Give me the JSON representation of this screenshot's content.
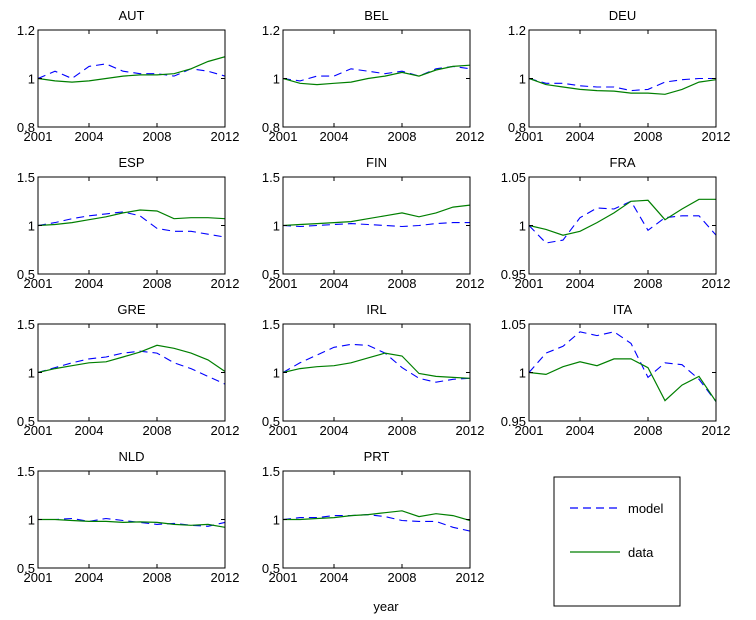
{
  "xlabel": "year",
  "legend": {
    "entries": [
      {
        "label": "model",
        "color": "#0000ff",
        "style": "dashed"
      },
      {
        "label": "data",
        "color": "#007f00",
        "style": "solid"
      }
    ]
  },
  "chart_data": [
    {
      "type": "line",
      "title": "AUT",
      "xlim": [
        2001,
        2012
      ],
      "ylim": [
        0.8,
        1.2
      ],
      "xticks": [
        {
          "v": 2001,
          "t": "2001"
        },
        {
          "v": 2004,
          "t": "2004"
        },
        {
          "v": 2008,
          "t": "2008"
        },
        {
          "v": 2012,
          "t": "2012"
        }
      ],
      "yticks": [
        {
          "v": 0.8,
          "t": "0.8"
        },
        {
          "v": 1,
          "t": "1"
        },
        {
          "v": 1.2,
          "t": "1.2"
        }
      ],
      "x": [
        2001,
        2002,
        2003,
        2004,
        2005,
        2006,
        2007,
        2008,
        2009,
        2010,
        2011,
        2012
      ],
      "series": [
        {
          "name": "model",
          "values": [
            1.0,
            1.03,
            1.0,
            1.05,
            1.06,
            1.03,
            1.02,
            1.02,
            1.01,
            1.04,
            1.03,
            1.01
          ]
        },
        {
          "name": "data",
          "values": [
            1.0,
            0.99,
            0.985,
            0.99,
            1.0,
            1.01,
            1.015,
            1.015,
            1.02,
            1.04,
            1.07,
            1.09
          ]
        }
      ]
    },
    {
      "type": "line",
      "title": "BEL",
      "xlim": [
        2001,
        2012
      ],
      "ylim": [
        0.8,
        1.2
      ],
      "xticks": [
        {
          "v": 2001,
          "t": "2001"
        },
        {
          "v": 2004,
          "t": "2004"
        },
        {
          "v": 2008,
          "t": "2008"
        },
        {
          "v": 2012,
          "t": "2012"
        }
      ],
      "yticks": [
        {
          "v": 0.8,
          "t": "0.8"
        },
        {
          "v": 1,
          "t": "1"
        },
        {
          "v": 1.2,
          "t": "1.2"
        }
      ],
      "x": [
        2001,
        2002,
        2003,
        2004,
        2005,
        2006,
        2007,
        2008,
        2009,
        2010,
        2011,
        2012
      ],
      "series": [
        {
          "name": "model",
          "values": [
            1.0,
            0.99,
            1.01,
            1.01,
            1.04,
            1.03,
            1.02,
            1.03,
            1.01,
            1.04,
            1.05,
            1.04
          ]
        },
        {
          "name": "data",
          "values": [
            1.0,
            0.98,
            0.975,
            0.98,
            0.985,
            1.0,
            1.01,
            1.025,
            1.01,
            1.035,
            1.05,
            1.055
          ]
        }
      ]
    },
    {
      "type": "line",
      "title": "DEU",
      "xlim": [
        2001,
        2012
      ],
      "ylim": [
        0.8,
        1.2
      ],
      "xticks": [
        {
          "v": 2001,
          "t": "2001"
        },
        {
          "v": 2004,
          "t": "2004"
        },
        {
          "v": 2008,
          "t": "2008"
        },
        {
          "v": 2012,
          "t": "2012"
        }
      ],
      "yticks": [
        {
          "v": 0.8,
          "t": "0.8"
        },
        {
          "v": 1,
          "t": "1"
        },
        {
          "v": 1.2,
          "t": "1.2"
        }
      ],
      "x": [
        2001,
        2002,
        2003,
        2004,
        2005,
        2006,
        2007,
        2008,
        2009,
        2010,
        2011,
        2012
      ],
      "series": [
        {
          "name": "model",
          "values": [
            1.0,
            0.98,
            0.98,
            0.97,
            0.965,
            0.965,
            0.95,
            0.955,
            0.985,
            0.995,
            1.0,
            1.0
          ]
        },
        {
          "name": "data",
          "values": [
            1.0,
            0.975,
            0.965,
            0.955,
            0.95,
            0.948,
            0.94,
            0.94,
            0.935,
            0.955,
            0.985,
            0.995
          ]
        }
      ]
    },
    {
      "type": "line",
      "title": "ESP",
      "xlim": [
        2001,
        2012
      ],
      "ylim": [
        0.5,
        1.5
      ],
      "xticks": [
        {
          "v": 2001,
          "t": "2001"
        },
        {
          "v": 2004,
          "t": "2004"
        },
        {
          "v": 2008,
          "t": "2008"
        },
        {
          "v": 2012,
          "t": "2012"
        }
      ],
      "yticks": [
        {
          "v": 0.5,
          "t": "0.5"
        },
        {
          "v": 1,
          "t": "1"
        },
        {
          "v": 1.5,
          "t": "1.5"
        }
      ],
      "x": [
        2001,
        2002,
        2003,
        2004,
        2005,
        2006,
        2007,
        2008,
        2009,
        2010,
        2011,
        2012
      ],
      "series": [
        {
          "name": "model",
          "values": [
            1.0,
            1.03,
            1.07,
            1.1,
            1.12,
            1.14,
            1.1,
            0.97,
            0.94,
            0.94,
            0.91,
            0.88
          ]
        },
        {
          "name": "data",
          "values": [
            1.0,
            1.01,
            1.03,
            1.06,
            1.09,
            1.13,
            1.16,
            1.15,
            1.07,
            1.08,
            1.08,
            1.07
          ]
        }
      ]
    },
    {
      "type": "line",
      "title": "FIN",
      "xlim": [
        2001,
        2012
      ],
      "ylim": [
        0.5,
        1.5
      ],
      "xticks": [
        {
          "v": 2001,
          "t": "2001"
        },
        {
          "v": 2004,
          "t": "2004"
        },
        {
          "v": 2008,
          "t": "2008"
        },
        {
          "v": 2012,
          "t": "2012"
        }
      ],
      "yticks": [
        {
          "v": 0.5,
          "t": "0.5"
        },
        {
          "v": 1,
          "t": "1"
        },
        {
          "v": 1.5,
          "t": "1.5"
        }
      ],
      "x": [
        2001,
        2002,
        2003,
        2004,
        2005,
        2006,
        2007,
        2008,
        2009,
        2010,
        2011,
        2012
      ],
      "series": [
        {
          "name": "model",
          "values": [
            1.0,
            0.99,
            1.0,
            1.01,
            1.02,
            1.01,
            1.0,
            0.99,
            1.0,
            1.02,
            1.03,
            1.03
          ]
        },
        {
          "name": "data",
          "values": [
            1.0,
            1.01,
            1.02,
            1.03,
            1.04,
            1.07,
            1.1,
            1.13,
            1.09,
            1.13,
            1.19,
            1.21
          ]
        }
      ]
    },
    {
      "type": "line",
      "title": "FRA",
      "xlim": [
        2001,
        2012
      ],
      "ylim": [
        0.95,
        1.05
      ],
      "xticks": [
        {
          "v": 2001,
          "t": "2001"
        },
        {
          "v": 2004,
          "t": "2004"
        },
        {
          "v": 2008,
          "t": "2008"
        },
        {
          "v": 2012,
          "t": "2012"
        }
      ],
      "yticks": [
        {
          "v": 0.95,
          "t": "0.95"
        },
        {
          "v": 1,
          "t": "1"
        },
        {
          "v": 1.05,
          "t": "1.05"
        }
      ],
      "x": [
        2001,
        2002,
        2003,
        2004,
        2005,
        2006,
        2007,
        2008,
        2009,
        2010,
        2011,
        2012
      ],
      "series": [
        {
          "name": "model",
          "values": [
            1.0,
            0.982,
            0.985,
            1.008,
            1.018,
            1.017,
            1.025,
            0.995,
            1.008,
            1.01,
            1.01,
            0.99
          ]
        },
        {
          "name": "data",
          "values": [
            1.0,
            0.996,
            0.99,
            0.994,
            1.003,
            1.013,
            1.025,
            1.026,
            1.006,
            1.017,
            1.027,
            1.027
          ]
        }
      ]
    },
    {
      "type": "line",
      "title": "GRE",
      "xlim": [
        2001,
        2012
      ],
      "ylim": [
        0.5,
        1.5
      ],
      "xticks": [
        {
          "v": 2001,
          "t": "2001"
        },
        {
          "v": 2004,
          "t": "2004"
        },
        {
          "v": 2008,
          "t": "2008"
        },
        {
          "v": 2012,
          "t": "2012"
        }
      ],
      "yticks": [
        {
          "v": 0.5,
          "t": "0.5"
        },
        {
          "v": 1,
          "t": "1"
        },
        {
          "v": 1.5,
          "t": "1.5"
        }
      ],
      "x": [
        2001,
        2002,
        2003,
        2004,
        2005,
        2006,
        2007,
        2008,
        2009,
        2010,
        2011,
        2012
      ],
      "series": [
        {
          "name": "model",
          "values": [
            1.0,
            1.05,
            1.1,
            1.14,
            1.16,
            1.2,
            1.22,
            1.2,
            1.1,
            1.04,
            0.96,
            0.88
          ]
        },
        {
          "name": "data",
          "values": [
            1.0,
            1.04,
            1.07,
            1.1,
            1.11,
            1.16,
            1.21,
            1.28,
            1.25,
            1.2,
            1.13,
            1.01
          ]
        }
      ]
    },
    {
      "type": "line",
      "title": "IRL",
      "xlim": [
        2001,
        2012
      ],
      "ylim": [
        0.5,
        1.5
      ],
      "xticks": [
        {
          "v": 2001,
          "t": "2001"
        },
        {
          "v": 2004,
          "t": "2004"
        },
        {
          "v": 2008,
          "t": "2008"
        },
        {
          "v": 2012,
          "t": "2012"
        }
      ],
      "yticks": [
        {
          "v": 0.5,
          "t": "0.5"
        },
        {
          "v": 1,
          "t": "1"
        },
        {
          "v": 1.5,
          "t": "1.5"
        }
      ],
      "x": [
        2001,
        2002,
        2003,
        2004,
        2005,
        2006,
        2007,
        2008,
        2009,
        2010,
        2011,
        2012
      ],
      "series": [
        {
          "name": "model",
          "values": [
            1.0,
            1.1,
            1.18,
            1.26,
            1.29,
            1.28,
            1.2,
            1.05,
            0.94,
            0.9,
            0.93,
            0.94
          ]
        },
        {
          "name": "data",
          "values": [
            1.0,
            1.04,
            1.06,
            1.07,
            1.1,
            1.15,
            1.2,
            1.17,
            0.99,
            0.96,
            0.95,
            0.94
          ]
        }
      ]
    },
    {
      "type": "line",
      "title": "ITA",
      "xlim": [
        2001,
        2012
      ],
      "ylim": [
        0.95,
        1.05
      ],
      "xticks": [
        {
          "v": 2001,
          "t": "2001"
        },
        {
          "v": 2004,
          "t": "2004"
        },
        {
          "v": 2008,
          "t": "2008"
        },
        {
          "v": 2012,
          "t": "2012"
        }
      ],
      "yticks": [
        {
          "v": 0.95,
          "t": "0.95"
        },
        {
          "v": 1,
          "t": "1"
        },
        {
          "v": 1.05,
          "t": "1.05"
        }
      ],
      "x": [
        2001,
        2002,
        2003,
        2004,
        2005,
        2006,
        2007,
        2008,
        2009,
        2010,
        2011,
        2012
      ],
      "series": [
        {
          "name": "model",
          "values": [
            1.0,
            1.02,
            1.027,
            1.042,
            1.038,
            1.042,
            1.03,
            0.995,
            1.01,
            1.008,
            0.993,
            0.97
          ]
        },
        {
          "name": "data",
          "values": [
            1.0,
            0.998,
            1.006,
            1.011,
            1.007,
            1.014,
            1.014,
            1.005,
            0.971,
            0.987,
            0.996,
            0.97
          ]
        }
      ]
    },
    {
      "type": "line",
      "title": "NLD",
      "xlim": [
        2001,
        2012
      ],
      "ylim": [
        0.5,
        1.5
      ],
      "xticks": [
        {
          "v": 2001,
          "t": "2001"
        },
        {
          "v": 2004,
          "t": "2004"
        },
        {
          "v": 2008,
          "t": "2008"
        },
        {
          "v": 2012,
          "t": "2012"
        }
      ],
      "yticks": [
        {
          "v": 0.5,
          "t": "0.5"
        },
        {
          "v": 1,
          "t": "1"
        },
        {
          "v": 1.5,
          "t": "1.5"
        }
      ],
      "x": [
        2001,
        2002,
        2003,
        2004,
        2005,
        2006,
        2007,
        2008,
        2009,
        2010,
        2011,
        2012
      ],
      "series": [
        {
          "name": "model",
          "values": [
            1.0,
            1.0,
            1.01,
            0.98,
            1.01,
            0.99,
            0.97,
            0.95,
            0.96,
            0.94,
            0.93,
            0.97
          ]
        },
        {
          "name": "data",
          "values": [
            1.0,
            1.0,
            0.99,
            0.98,
            0.98,
            0.97,
            0.975,
            0.97,
            0.95,
            0.94,
            0.95,
            0.92
          ]
        }
      ]
    },
    {
      "type": "line",
      "title": "PRT",
      "xlim": [
        2001,
        2012
      ],
      "ylim": [
        0.5,
        1.5
      ],
      "xticks": [
        {
          "v": 2001,
          "t": "2001"
        },
        {
          "v": 2004,
          "t": "2004"
        },
        {
          "v": 2008,
          "t": "2008"
        },
        {
          "v": 2012,
          "t": "2012"
        }
      ],
      "yticks": [
        {
          "v": 0.5,
          "t": "0.5"
        },
        {
          "v": 1,
          "t": "1"
        },
        {
          "v": 1.5,
          "t": "1.5"
        }
      ],
      "x": [
        2001,
        2002,
        2003,
        2004,
        2005,
        2006,
        2007,
        2008,
        2009,
        2010,
        2011,
        2012
      ],
      "series": [
        {
          "name": "model",
          "values": [
            1.0,
            1.02,
            1.02,
            1.04,
            1.04,
            1.05,
            1.03,
            0.99,
            0.98,
            0.98,
            0.92,
            0.88
          ]
        },
        {
          "name": "data",
          "values": [
            1.0,
            1.0,
            1.01,
            1.02,
            1.04,
            1.05,
            1.07,
            1.09,
            1.03,
            1.06,
            1.04,
            0.99
          ]
        }
      ]
    }
  ]
}
